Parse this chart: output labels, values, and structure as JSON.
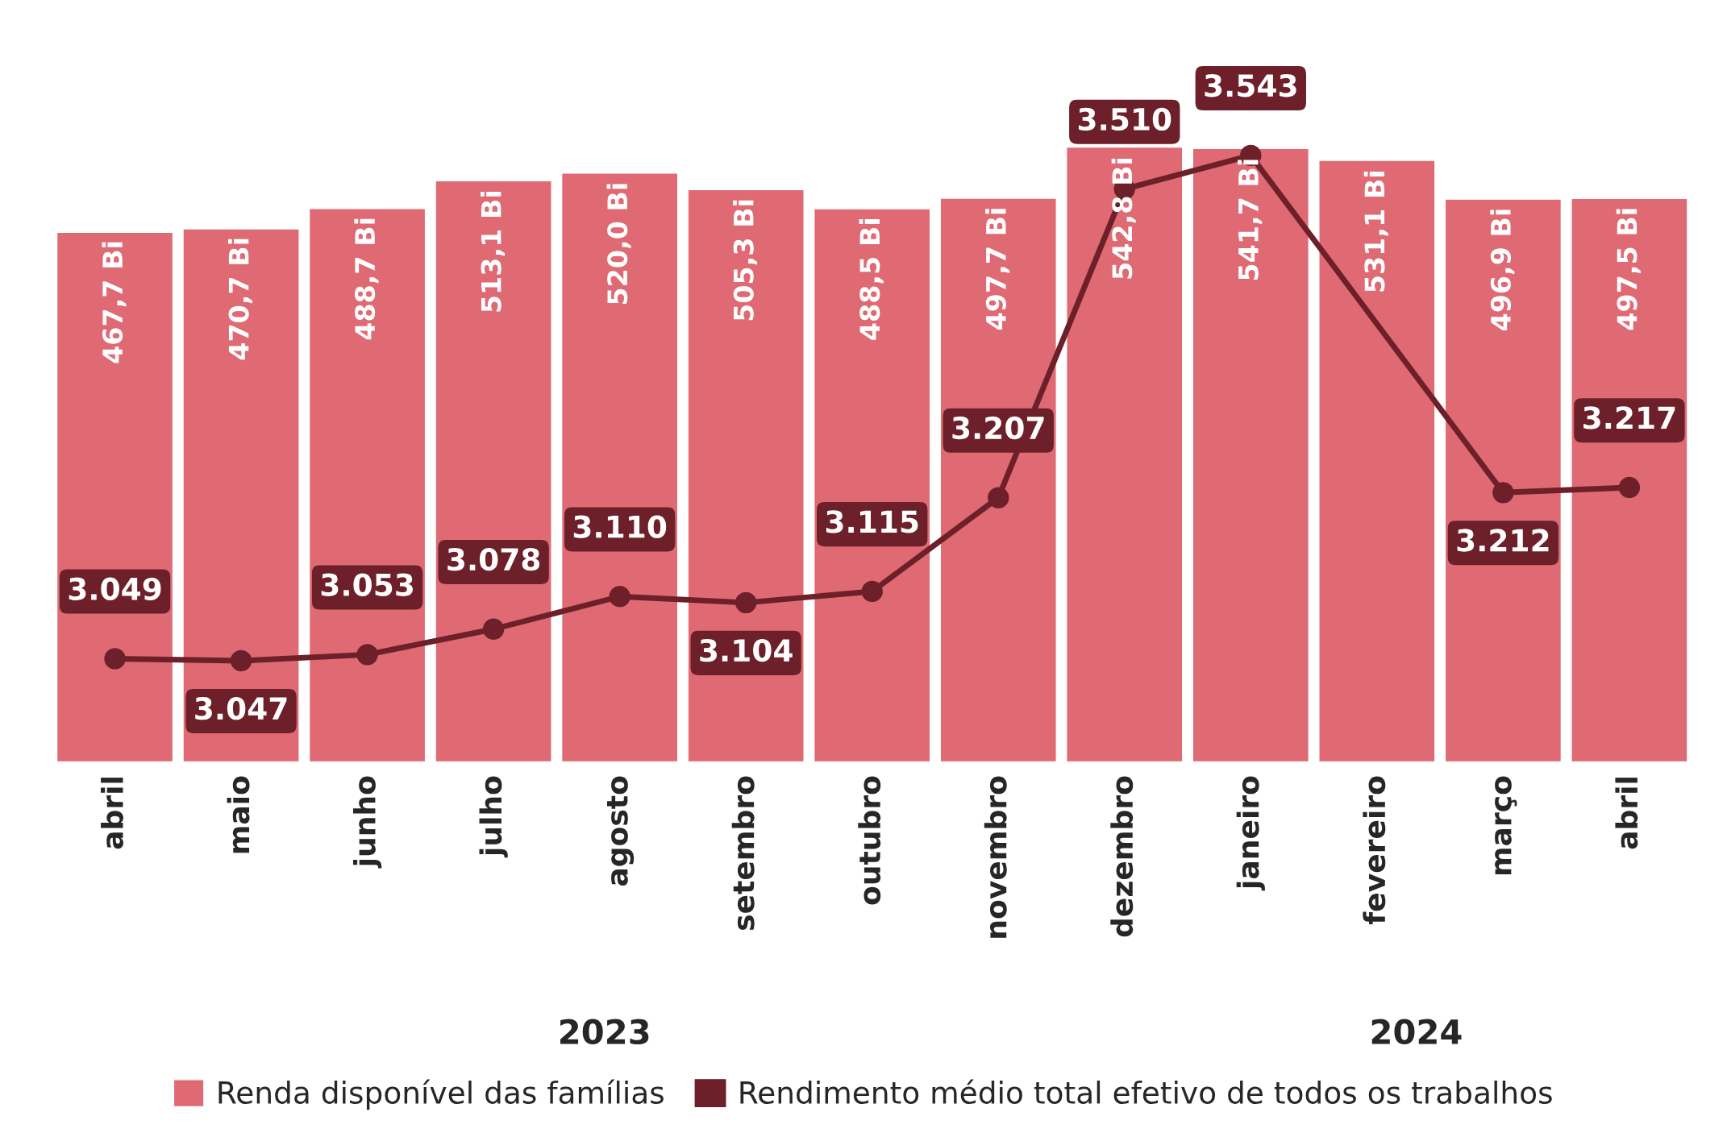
{
  "chart_data": {
    "type": "bar",
    "categories": [
      "abril",
      "maio",
      "junho",
      "julho",
      "agosto",
      "setembro",
      "outubro",
      "novembro",
      "dezembro",
      "janeiro",
      "fevereiro",
      "março",
      "abril"
    ],
    "series": [
      {
        "name": "Renda disponível das famílias",
        "color": "#df6a73",
        "values": [
          467.7,
          470.7,
          488.7,
          513.1,
          520.0,
          505.3,
          488.5,
          497.7,
          542.8,
          541.7,
          531.1,
          496.9,
          497.5
        ],
        "value_labels": [
          "467,7 Bi",
          "470,7 Bi",
          "488,7 Bi",
          "513,1 Bi",
          "520,0 Bi",
          "505,3 Bi",
          "488,5 Bi",
          "497,7 Bi",
          "542,8 Bi",
          "541,7 Bi",
          "531,1 Bi",
          "496,9 Bi",
          "497,5 Bi"
        ]
      },
      {
        "name": "Rendimento médio total efetivo de todos os trabalhos",
        "type": "line",
        "axis": "y2",
        "color": "#6d2029",
        "values": [
          3049,
          3047,
          3053,
          3078,
          3110,
          3104,
          3115,
          3207,
          3510,
          3543,
          null,
          3212,
          3217
        ],
        "value_labels": [
          "3.049",
          "3.047",
          "3.053",
          "3.078",
          "3.110",
          "3.104",
          "3.115",
          "3.207",
          "3.510",
          "3.543",
          null,
          "3.212",
          "3.217"
        ]
      }
    ],
    "tick_labels": "x",
    "legend": "bottom",
    "marker": "circle",
    "line_style": "solid",
    "annotations": [
      "2023",
      "2024"
    ]
  }
}
